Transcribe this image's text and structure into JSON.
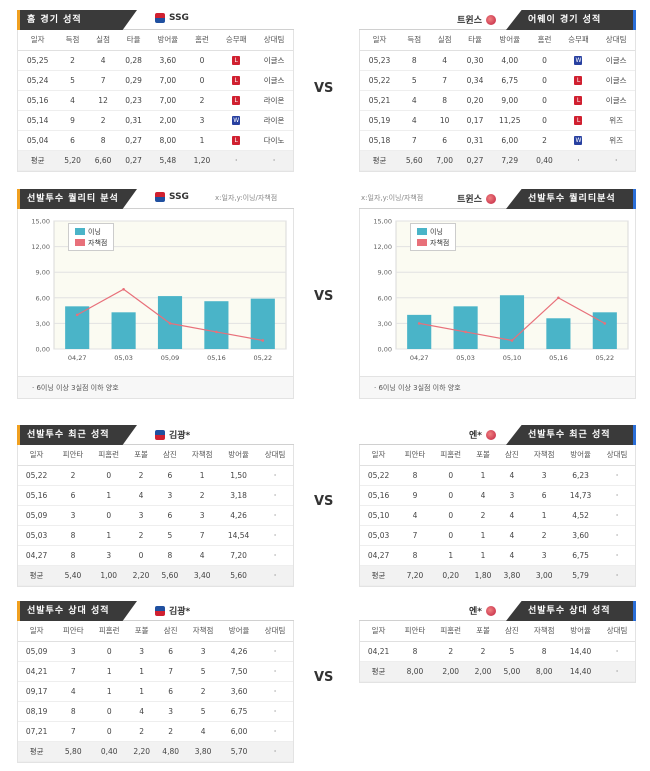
{
  "colors": {
    "bar": "#4ab4c8",
    "line": "#e8707a",
    "tab_bg": "#3a3a3a",
    "accent_left": "#f0a020",
    "accent_right": "#2a6ed8"
  },
  "vs_label": "VS",
  "home_record": {
    "tab": "홈 경기 성적",
    "team": "SSG",
    "headers": [
      "일자",
      "득점",
      "실점",
      "타율",
      "방어율",
      "홈런",
      "승무패",
      "상대팀"
    ],
    "rows": [
      [
        "05,25",
        "2",
        "4",
        "0,28",
        "3,60",
        "0",
        "L",
        "이글스"
      ],
      [
        "05,24",
        "5",
        "7",
        "0,29",
        "7,00",
        "0",
        "L",
        "이글스"
      ],
      [
        "05,16",
        "4",
        "12",
        "0,23",
        "7,00",
        "2",
        "L",
        "라이온"
      ],
      [
        "05,14",
        "9",
        "2",
        "0,31",
        "2,00",
        "3",
        "W",
        "라이온"
      ],
      [
        "05,04",
        "6",
        "8",
        "0,27",
        "8,00",
        "1",
        "L",
        "다이노"
      ]
    ],
    "avg": [
      "평균",
      "5,20",
      "6,60",
      "0,27",
      "5,48",
      "1,20",
      "·",
      "·"
    ]
  },
  "away_record": {
    "tab": "어웨이 경기 성적",
    "team": "트윈스",
    "headers": [
      "일자",
      "득점",
      "실점",
      "타율",
      "방어율",
      "홈런",
      "승무패",
      "상대팀"
    ],
    "rows": [
      [
        "05,23",
        "8",
        "4",
        "0,30",
        "4,00",
        "0",
        "W",
        "이글스"
      ],
      [
        "05,22",
        "5",
        "7",
        "0,34",
        "6,75",
        "0",
        "L",
        "이글스"
      ],
      [
        "05,21",
        "4",
        "8",
        "0,20",
        "9,00",
        "0",
        "L",
        "이글스"
      ],
      [
        "05,19",
        "4",
        "10",
        "0,17",
        "11,25",
        "0",
        "L",
        "위즈"
      ],
      [
        "05,18",
        "7",
        "6",
        "0,31",
        "6,00",
        "2",
        "W",
        "위즈"
      ]
    ],
    "avg": [
      "평균",
      "5,60",
      "7,00",
      "0,27",
      "7,29",
      "0,40",
      "·",
      "·"
    ]
  },
  "quality_left": {
    "tab": "선발투수 퀄리티 분석",
    "team": "SSG",
    "note": "x:일자,y:이닝/자책점",
    "footer": "6이닝 이상 3실점 이하 양호"
  },
  "quality_right": {
    "tab": "선발투수 퀄리티분석",
    "team": "트윈스",
    "note": "x:일자,y:이닝/자책점",
    "footer": "6이닝 이상 3실점 이하 양호"
  },
  "chart_data": [
    {
      "type": "bar",
      "categories": [
        "04,27",
        "05,03",
        "05,09",
        "05,16",
        "05,22"
      ],
      "series": [
        {
          "name": "이닝",
          "values": [
            5.0,
            4.3,
            6.2,
            5.6,
            5.9
          ]
        },
        {
          "name": "자책점",
          "values": [
            4.0,
            7.0,
            3.0,
            2.0,
            1.0
          ]
        }
      ],
      "ylim": [
        0,
        15
      ],
      "yticks": [
        "0,00",
        "3,00",
        "6,00",
        "9,00",
        "12,00",
        "15,00"
      ]
    },
    {
      "type": "bar",
      "categories": [
        "04,27",
        "05,03",
        "05,10",
        "05,16",
        "05,22"
      ],
      "series": [
        {
          "name": "이닝",
          "values": [
            4.0,
            5.0,
            6.3,
            3.6,
            4.3
          ]
        },
        {
          "name": "자책점",
          "values": [
            3.0,
            2.0,
            1.0,
            6.0,
            3.0
          ]
        }
      ],
      "ylim": [
        0,
        15
      ],
      "yticks": [
        "0,00",
        "3,00",
        "6,00",
        "9,00",
        "12,00",
        "15,00"
      ]
    }
  ],
  "recent_left": {
    "tab": "선발투수 최근 성적",
    "team": "김광*",
    "headers": [
      "일자",
      "피안타",
      "피홈런",
      "포볼",
      "삼진",
      "자책점",
      "방어율",
      "상대팀"
    ],
    "rows": [
      [
        "05,22",
        "2",
        "0",
        "2",
        "6",
        "1",
        "1,50",
        "·"
      ],
      [
        "05,16",
        "6",
        "1",
        "4",
        "3",
        "2",
        "3,18",
        "·"
      ],
      [
        "05,09",
        "3",
        "0",
        "3",
        "6",
        "3",
        "4,26",
        "·"
      ],
      [
        "05,03",
        "8",
        "1",
        "2",
        "5",
        "7",
        "14,54",
        "·"
      ],
      [
        "04,27",
        "8",
        "3",
        "0",
        "8",
        "4",
        "7,20",
        "·"
      ]
    ],
    "avg": [
      "평균",
      "5,40",
      "1,00",
      "2,20",
      "5,60",
      "3,40",
      "5,60",
      "·"
    ]
  },
  "recent_right": {
    "tab": "선발투수 최근 성적",
    "team": "엔*",
    "headers": [
      "일자",
      "피안타",
      "피홈런",
      "포볼",
      "삼진",
      "자책점",
      "방어율",
      "상대팀"
    ],
    "rows": [
      [
        "05,22",
        "8",
        "0",
        "1",
        "4",
        "3",
        "6,23",
        "·"
      ],
      [
        "05,16",
        "9",
        "0",
        "4",
        "3",
        "6",
        "14,73",
        "·"
      ],
      [
        "05,10",
        "4",
        "0",
        "2",
        "4",
        "1",
        "4,52",
        "·"
      ],
      [
        "05,03",
        "7",
        "0",
        "1",
        "4",
        "2",
        "3,60",
        "·"
      ],
      [
        "04,27",
        "8",
        "1",
        "1",
        "4",
        "3",
        "6,75",
        "·"
      ]
    ],
    "avg": [
      "평균",
      "7,20",
      "0,20",
      "1,80",
      "3,80",
      "3,00",
      "5,79",
      "·"
    ]
  },
  "vs_left": {
    "tab": "선발투수 상대 성적",
    "team": "김광*",
    "headers": [
      "일자",
      "피안타",
      "피홈런",
      "포볼",
      "삼진",
      "자책점",
      "방어율",
      "상대팀"
    ],
    "rows": [
      [
        "05,09",
        "3",
        "0",
        "3",
        "6",
        "3",
        "4,26",
        "·"
      ],
      [
        "04,21",
        "7",
        "1",
        "1",
        "7",
        "5",
        "7,50",
        "·"
      ],
      [
        "09,17",
        "4",
        "1",
        "1",
        "6",
        "2",
        "3,60",
        "·"
      ],
      [
        "08,19",
        "8",
        "0",
        "4",
        "3",
        "5",
        "6,75",
        "·"
      ],
      [
        "07,21",
        "7",
        "0",
        "2",
        "2",
        "4",
        "6,00",
        "·"
      ]
    ],
    "avg": [
      "평균",
      "5,80",
      "0,40",
      "2,20",
      "4,80",
      "3,80",
      "5,70",
      "·"
    ]
  },
  "vs_right": {
    "tab": "선발투수 상대 성적",
    "team": "엔*",
    "headers": [
      "일자",
      "피안타",
      "피홈런",
      "포볼",
      "삼진",
      "자책점",
      "방어율",
      "상대팀"
    ],
    "rows": [
      [
        "04,21",
        "8",
        "2",
        "2",
        "5",
        "8",
        "14,40",
        "·"
      ]
    ],
    "avg": [
      "평균",
      "8,00",
      "2,00",
      "2,00",
      "5,00",
      "8,00",
      "14,40",
      "·"
    ]
  }
}
